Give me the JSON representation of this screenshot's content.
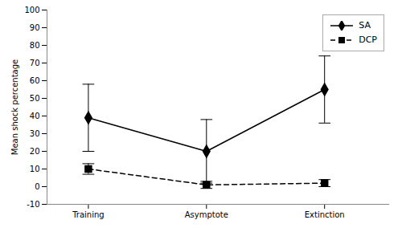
{
  "chart_data": {
    "type": "line",
    "categories": [
      "Training",
      "Asymptote",
      "Extinction"
    ],
    "ylabel": "Mean shock percentage",
    "ylim": [
      -10,
      100
    ],
    "yticks": [
      -10,
      0,
      10,
      20,
      30,
      40,
      50,
      60,
      70,
      80,
      90,
      100
    ],
    "grid": false,
    "legend": "upper right",
    "series": [
      {
        "name": "SA",
        "color": "#000000",
        "values": [
          39,
          20,
          55
        ],
        "errors": [
          19,
          18,
          19
        ],
        "marker": "diamond",
        "line_style": "solid"
      },
      {
        "name": "DCP",
        "color": "#000000",
        "values": [
          10,
          1,
          2
        ],
        "errors": [
          3,
          2,
          2
        ],
        "marker": "square",
        "line_style": "dashed"
      }
    ]
  }
}
